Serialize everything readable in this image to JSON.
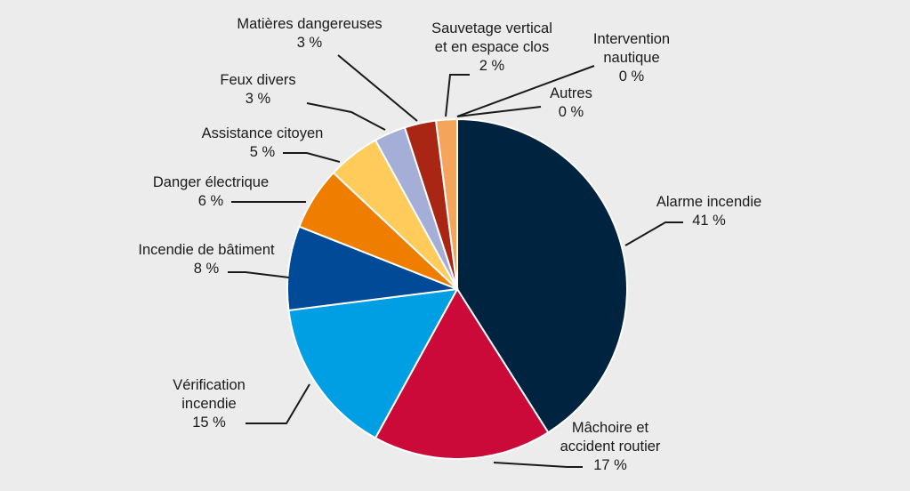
{
  "chart_data": {
    "type": "pie",
    "title": "",
    "unit": "%",
    "slices": [
      {
        "name": "Alarme incendie",
        "label_lines": [
          "Alarme incendie"
        ],
        "value": 41,
        "value_label": "41 %",
        "color": "#00243f"
      },
      {
        "name": "Mâchoire et accident routier",
        "label_lines": [
          "Mâchoire et",
          "accident routier"
        ],
        "value": 17,
        "value_label": "17 %",
        "color": "#cc0a3a"
      },
      {
        "name": "Vérification incendie",
        "label_lines": [
          "Vérification",
          "incendie"
        ],
        "value": 15,
        "value_label": "15 %",
        "color": "#009fe3"
      },
      {
        "name": "Incendie de bâtiment",
        "label_lines": [
          "Incendie de bâtiment"
        ],
        "value": 8,
        "value_label": "8 %",
        "color": "#004a97"
      },
      {
        "name": "Danger électrique",
        "label_lines": [
          "Danger électrique"
        ],
        "value": 6,
        "value_label": "6 %",
        "color": "#ee7d00"
      },
      {
        "name": "Assistance citoyen",
        "label_lines": [
          "Assistance citoyen"
        ],
        "value": 5,
        "value_label": "5 %",
        "color": "#ffcc5c"
      },
      {
        "name": "Feux divers",
        "label_lines": [
          "Feux divers"
        ],
        "value": 3,
        "value_label": "3 %",
        "color": "#a4aed6"
      },
      {
        "name": "Matières dangereuses",
        "label_lines": [
          "Matières dangereuses"
        ],
        "value": 3,
        "value_label": "3 %",
        "color": "#a92614"
      },
      {
        "name": "Sauvetage vertical et en espace clos",
        "label_lines": [
          "Sauvetage vertical",
          "et en espace clos"
        ],
        "value": 2,
        "value_label": "2 %",
        "color": "#f5a55b"
      },
      {
        "name": "Intervention nautique",
        "label_lines": [
          "Intervention",
          "nautique"
        ],
        "value": 0,
        "value_label": "0 %",
        "color": "#f5a55b"
      },
      {
        "name": "Autres",
        "label_lines": [
          "Autres"
        ],
        "value": 0,
        "value_label": "0 %",
        "color": "#f5a55b"
      }
    ]
  }
}
